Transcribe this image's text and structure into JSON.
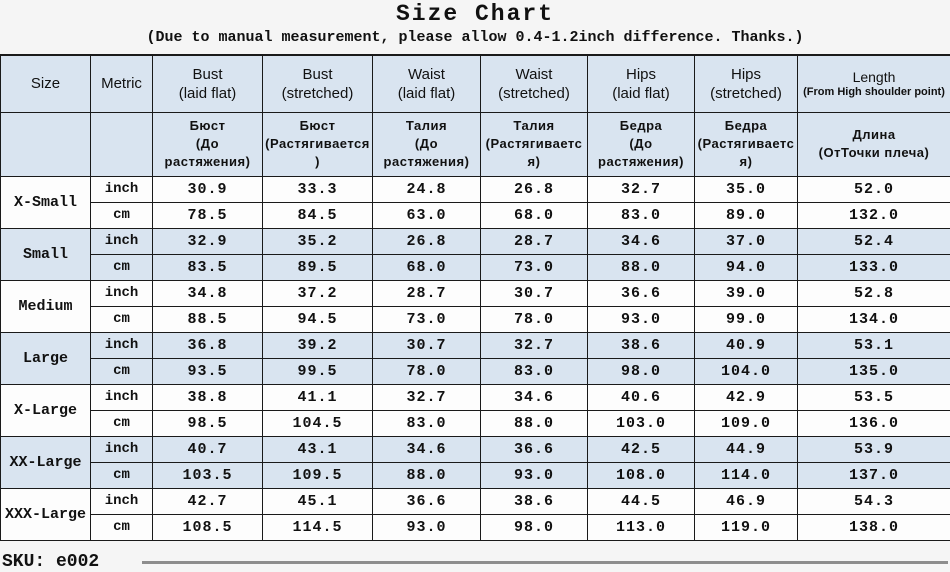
{
  "page": {
    "title": "Size Chart",
    "subtitle": "(Due to manual measurement, please allow 0.4-1.2inch difference. Thanks.)"
  },
  "colors": {
    "stripe": "#d9e4f0",
    "header_bg": "#d9e4f0",
    "border": "#1a1a1a",
    "bottom_rule": "#8d8d8d"
  },
  "chart_data": {
    "type": "table",
    "title": "Size Chart",
    "note": "(Due to manual measurement, please allow 0.4-1.2inch difference. Thanks.)",
    "corner": {
      "size": "Size",
      "metric": "Metric"
    },
    "metric_labels": [
      "inch",
      "cm"
    ],
    "columns": [
      {
        "en": "Bust",
        "en_sub": "(laid flat)",
        "ru": "Бюст",
        "ru_sub": "(До растяжения)"
      },
      {
        "en": "Bust",
        "en_sub": "(stretched)",
        "ru": "Бюст",
        "ru_sub": "(Растягивается)"
      },
      {
        "en": "Waist",
        "en_sub": "(laid flat)",
        "ru": "Талия",
        "ru_sub": "(До растяжения)"
      },
      {
        "en": "Waist",
        "en_sub": "(stretched)",
        "ru": "Талия",
        "ru_sub": "(Растягивается)"
      },
      {
        "en": "Hips",
        "en_sub": "(laid flat)",
        "ru": "Бедра",
        "ru_sub": "(До растяжения)"
      },
      {
        "en": "Hips",
        "en_sub": "(stretched)",
        "ru": "Бедра",
        "ru_sub": "(Растягивается)"
      },
      {
        "en": "Length",
        "en_sub": "(From High shoulder point)",
        "ru": "Длина",
        "ru_sub": "(ОтТочки плеча)"
      }
    ],
    "rows": [
      {
        "size": "X-Small",
        "inch": [
          "30.9",
          "33.3",
          "24.8",
          "26.8",
          "32.7",
          "35.0",
          "52.0"
        ],
        "cm": [
          "78.5",
          "84.5",
          "63.0",
          "68.0",
          "83.0",
          "89.0",
          "132.0"
        ]
      },
      {
        "size": "Small",
        "inch": [
          "32.9",
          "35.2",
          "26.8",
          "28.7",
          "34.6",
          "37.0",
          "52.4"
        ],
        "cm": [
          "83.5",
          "89.5",
          "68.0",
          "73.0",
          "88.0",
          "94.0",
          "133.0"
        ]
      },
      {
        "size": "Medium",
        "inch": [
          "34.8",
          "37.2",
          "28.7",
          "30.7",
          "36.6",
          "39.0",
          "52.8"
        ],
        "cm": [
          "88.5",
          "94.5",
          "73.0",
          "78.0",
          "93.0",
          "99.0",
          "134.0"
        ]
      },
      {
        "size": "Large",
        "inch": [
          "36.8",
          "39.2",
          "30.7",
          "32.7",
          "38.6",
          "40.9",
          "53.1"
        ],
        "cm": [
          "93.5",
          "99.5",
          "78.0",
          "83.0",
          "98.0",
          "104.0",
          "135.0"
        ]
      },
      {
        "size": "X-Large",
        "inch": [
          "38.8",
          "41.1",
          "32.7",
          "34.6",
          "40.6",
          "42.9",
          "53.5"
        ],
        "cm": [
          "98.5",
          "104.5",
          "83.0",
          "88.0",
          "103.0",
          "109.0",
          "136.0"
        ]
      },
      {
        "size": "XX-Large",
        "inch": [
          "40.7",
          "43.1",
          "34.6",
          "36.6",
          "42.5",
          "44.9",
          "53.9"
        ],
        "cm": [
          "103.5",
          "109.5",
          "88.0",
          "93.0",
          "108.0",
          "114.0",
          "137.0"
        ]
      },
      {
        "size": "XXX-Large",
        "inch": [
          "42.7",
          "45.1",
          "36.6",
          "38.6",
          "44.5",
          "46.9",
          "54.3"
        ],
        "cm": [
          "108.5",
          "114.5",
          "93.0",
          "98.0",
          "113.0",
          "119.0",
          "138.0"
        ]
      }
    ],
    "footer_sku": "SKU: e002"
  }
}
